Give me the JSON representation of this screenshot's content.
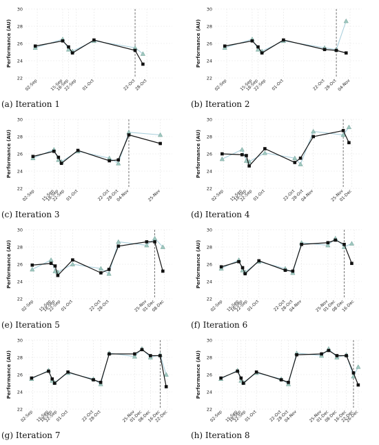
{
  "chart_data": [
    {
      "type": "line",
      "caption": "(a) Iteration 1",
      "ylabel": "Performance (AU)",
      "ylim": [
        22,
        30
      ],
      "yticks": [
        22,
        24,
        26,
        28,
        30
      ],
      "xlim": [
        "2024-08-27",
        "2024-11-10"
      ],
      "xtick_dates": [
        "2024-09-02",
        "2024-09-15",
        "2024-09-18",
        "2024-09-22",
        "2024-10-01",
        "2024-10-22",
        "2024-10-28"
      ],
      "xtick_labels": [
        "02-Sep",
        "15-Sep",
        "18-Sep",
        "22-Sep",
        "01-Oct",
        "22-Oct",
        "28-Oct"
      ],
      "cutoff": "2024-10-22",
      "series": [
        {
          "marker": "square",
          "x": [
            "2024-09-01",
            "2024-09-15",
            "2024-09-18",
            "2024-09-20",
            "2024-10-01",
            "2024-10-22",
            "2024-10-26"
          ],
          "y": [
            25.7,
            26.3,
            25.6,
            24.9,
            26.4,
            25.2,
            23.6
          ]
        },
        {
          "marker": "triangle",
          "x": [
            "2024-09-01",
            "2024-09-15",
            "2024-09-18",
            "2024-09-20",
            "2024-10-01",
            "2024-10-22",
            "2024-10-26"
          ],
          "y": [
            25.5,
            26.5,
            25.3,
            25.1,
            26.3,
            25.5,
            24.8
          ]
        }
      ]
    },
    {
      "type": "line",
      "caption": "(b) Iteration 2",
      "ylabel": "Performance (AU)",
      "ylim": [
        22,
        30
      ],
      "yticks": [
        22,
        24,
        26,
        28,
        30
      ],
      "xlim": [
        "2024-08-27",
        "2024-11-10"
      ],
      "xtick_dates": [
        "2024-09-02",
        "2024-09-15",
        "2024-09-18",
        "2024-09-22",
        "2024-10-01",
        "2024-10-22",
        "2024-10-28",
        "2024-11-04"
      ],
      "xtick_labels": [
        "02-Sep",
        "15-Sep",
        "18-Sep",
        "22-Sep",
        "01-Oct",
        "22-Oct",
        "28-Oct",
        "04-Nov"
      ],
      "cutoff": "2024-10-28",
      "series": [
        {
          "marker": "square",
          "x": [
            "2024-09-01",
            "2024-09-15",
            "2024-09-18",
            "2024-09-20",
            "2024-10-01",
            "2024-10-22",
            "2024-10-28",
            "2024-11-02"
          ],
          "y": [
            25.7,
            26.3,
            25.6,
            24.9,
            26.4,
            25.3,
            25.2,
            24.9
          ]
        },
        {
          "marker": "triangle",
          "x": [
            "2024-09-01",
            "2024-09-15",
            "2024-09-18",
            "2024-09-20",
            "2024-10-01",
            "2024-10-22",
            "2024-10-28",
            "2024-11-02"
          ],
          "y": [
            25.5,
            26.5,
            25.3,
            25.1,
            26.3,
            25.5,
            25.3,
            28.6
          ]
        }
      ]
    },
    {
      "type": "line",
      "caption": "(c) Iteration 3",
      "ylabel": "Performance (AU)",
      "ylim": [
        22,
        30
      ],
      "yticks": [
        22,
        24,
        26,
        28,
        30
      ],
      "xlim": [
        "2024-08-27",
        "2024-12-03"
      ],
      "xtick_dates": [
        "2024-09-02",
        "2024-09-15",
        "2024-09-18",
        "2024-09-22",
        "2024-10-01",
        "2024-10-22",
        "2024-10-28",
        "2024-11-04",
        "2024-11-25"
      ],
      "xtick_labels": [
        "02-Sep",
        "15-Sep",
        "18-Sep",
        "22-Sep",
        "01-Oct",
        "22-Oct",
        "28-Oct",
        "04-Nov",
        "25-Nov"
      ],
      "cutoff": "2024-11-04",
      "series": [
        {
          "marker": "square",
          "x": [
            "2024-09-01",
            "2024-09-15",
            "2024-09-18",
            "2024-09-20",
            "2024-10-01",
            "2024-10-22",
            "2024-10-28",
            "2024-11-04",
            "2024-11-25"
          ],
          "y": [
            25.7,
            26.3,
            25.6,
            24.9,
            26.4,
            25.2,
            25.3,
            28.2,
            27.2
          ]
        },
        {
          "marker": "triangle",
          "x": [
            "2024-09-01",
            "2024-09-15",
            "2024-09-18",
            "2024-09-20",
            "2024-10-01",
            "2024-10-22",
            "2024-10-28",
            "2024-11-04",
            "2024-11-25"
          ],
          "y": [
            25.5,
            26.5,
            25.3,
            25.1,
            26.3,
            25.5,
            24.9,
            28.5,
            28.2
          ]
        }
      ]
    },
    {
      "type": "line",
      "caption": "(d) Iteration 4",
      "ylabel": "Performance (AU)",
      "ylim": [
        22,
        30
      ],
      "yticks": [
        22,
        24,
        26,
        28,
        30
      ],
      "xlim": [
        "2024-08-27",
        "2024-12-08"
      ],
      "xtick_dates": [
        "2024-09-02",
        "2024-09-15",
        "2024-09-18",
        "2024-09-22",
        "2024-10-01",
        "2024-10-22",
        "2024-10-28",
        "2024-11-04",
        "2024-11-25",
        "2024-12-01"
      ],
      "xtick_labels": [
        "02-Sep",
        "15-Sep",
        "18-Sep",
        "22-Sep",
        "01-Oct",
        "22-Oct",
        "28-Oct",
        "04-Nov",
        "25-Nov",
        "01-Dec"
      ],
      "cutoff": "2024-11-25",
      "series": [
        {
          "marker": "square",
          "x": [
            "2024-09-01",
            "2024-09-15",
            "2024-09-18",
            "2024-09-20",
            "2024-10-01",
            "2024-10-22",
            "2024-10-26",
            "2024-11-04",
            "2024-11-25",
            "2024-11-29"
          ],
          "y": [
            26.0,
            25.9,
            25.8,
            24.6,
            26.6,
            25.0,
            25.5,
            28.0,
            28.7,
            27.3
          ]
        },
        {
          "marker": "triangle",
          "x": [
            "2024-09-01",
            "2024-09-15",
            "2024-09-18",
            "2024-09-20",
            "2024-10-01",
            "2024-10-22",
            "2024-10-26",
            "2024-11-04",
            "2024-11-25",
            "2024-11-29"
          ],
          "y": [
            25.4,
            26.5,
            25.2,
            25.1,
            26.1,
            25.5,
            24.8,
            28.6,
            28.2,
            29.1
          ]
        }
      ]
    },
    {
      "type": "line",
      "caption": "(e) Iteration 5",
      "ylabel": "Performance (AU)",
      "ylim": [
        22,
        30
      ],
      "yticks": [
        22,
        24,
        26,
        28,
        30
      ],
      "xlim": [
        "2024-08-27",
        "2024-12-14"
      ],
      "xtick_dates": [
        "2024-09-02",
        "2024-09-15",
        "2024-09-18",
        "2024-09-22",
        "2024-10-01",
        "2024-10-22",
        "2024-10-28",
        "2024-11-25",
        "2024-12-01",
        "2024-12-08"
      ],
      "xtick_labels": [
        "02-Sep",
        "15-Sep",
        "18-Sep",
        "22-Sep",
        "01-Oct",
        "22-Oct",
        "28-Oct",
        "25-Nov",
        "01-Dec",
        "08-Dec"
      ],
      "cutoff": "2024-12-01",
      "series": [
        {
          "marker": "square",
          "x": [
            "2024-09-01",
            "2024-09-15",
            "2024-09-18",
            "2024-09-20",
            "2024-10-01",
            "2024-10-22",
            "2024-10-28",
            "2024-11-04",
            "2024-11-25",
            "2024-12-01",
            "2024-12-07"
          ],
          "y": [
            25.9,
            26.1,
            25.8,
            24.7,
            26.5,
            25.0,
            25.4,
            28.1,
            28.6,
            28.6,
            25.2
          ]
        },
        {
          "marker": "triangle",
          "x": [
            "2024-09-01",
            "2024-09-15",
            "2024-09-18",
            "2024-09-20",
            "2024-10-01",
            "2024-10-22",
            "2024-10-28",
            "2024-11-04",
            "2024-11-25",
            "2024-12-01",
            "2024-12-07"
          ],
          "y": [
            25.4,
            26.5,
            25.2,
            25.1,
            26.0,
            25.5,
            24.9,
            28.6,
            28.2,
            29.0,
            28.0
          ]
        }
      ]
    },
    {
      "type": "line",
      "caption": "(f) Iteration 6",
      "ylabel": "Performance (AU)",
      "ylim": [
        22,
        30
      ],
      "yticks": [
        22,
        24,
        26,
        28,
        30
      ],
      "xlim": [
        "2024-08-27",
        "2024-12-22"
      ],
      "xtick_dates": [
        "2024-09-02",
        "2024-09-15",
        "2024-09-18",
        "2024-09-22",
        "2024-10-01",
        "2024-10-22",
        "2024-10-28",
        "2024-11-04",
        "2024-11-25",
        "2024-12-01",
        "2024-12-08",
        "2024-12-16"
      ],
      "xtick_labels": [
        "02-Sep",
        "15-Sep",
        "18-Sep",
        "22-Sep",
        "01-Oct",
        "22-Oct",
        "28-Oct",
        "04-Nov",
        "25-Nov",
        "01-Dec",
        "08-Dec",
        "16-Dec"
      ],
      "cutoff": "2024-12-08",
      "series": [
        {
          "marker": "square",
          "x": [
            "2024-09-01",
            "2024-09-15",
            "2024-09-18",
            "2024-09-20",
            "2024-10-01",
            "2024-10-22",
            "2024-10-28",
            "2024-11-04",
            "2024-11-25",
            "2024-12-01",
            "2024-12-08",
            "2024-12-14"
          ],
          "y": [
            25.7,
            26.3,
            25.6,
            24.9,
            26.4,
            25.3,
            25.2,
            28.3,
            28.5,
            28.8,
            28.3,
            26.1
          ]
        },
        {
          "marker": "triangle",
          "x": [
            "2024-09-01",
            "2024-09-15",
            "2024-09-18",
            "2024-09-20",
            "2024-10-01",
            "2024-10-22",
            "2024-10-28",
            "2024-11-04",
            "2024-11-25",
            "2024-12-01",
            "2024-12-08",
            "2024-12-14"
          ],
          "y": [
            25.5,
            26.5,
            25.3,
            25.1,
            26.3,
            25.5,
            25.0,
            28.5,
            28.2,
            29.0,
            28.0,
            28.4
          ]
        }
      ]
    },
    {
      "type": "line",
      "caption": "(g) Iteration 7",
      "ylabel": "Performance (AU)",
      "ylim": [
        22,
        30
      ],
      "yticks": [
        22,
        24,
        26,
        28,
        30
      ],
      "xlim": [
        "2024-08-27",
        "2024-12-26"
      ],
      "xtick_dates": [
        "2024-09-02",
        "2024-09-15",
        "2024-09-18",
        "2024-09-22",
        "2024-10-01",
        "2024-10-22",
        "2024-10-28",
        "2024-11-25",
        "2024-12-01",
        "2024-12-08",
        "2024-12-16",
        "2024-12-22"
      ],
      "xtick_labels": [
        "02-Sep",
        "15-Sep",
        "18-Sep",
        "22-Sep",
        "01-Oct",
        "22-Oct",
        "28-Oct",
        "25-Nov",
        "01-Dec",
        "08-Dec",
        "16-Dec",
        "22-Dec"
      ],
      "cutoff": "2024-12-16",
      "series": [
        {
          "marker": "square",
          "x": [
            "2024-09-01",
            "2024-09-15",
            "2024-09-18",
            "2024-09-20",
            "2024-10-01",
            "2024-10-22",
            "2024-10-28",
            "2024-11-04",
            "2024-11-25",
            "2024-12-01",
            "2024-12-08",
            "2024-12-16",
            "2024-12-21"
          ],
          "y": [
            25.6,
            26.4,
            25.5,
            25.0,
            26.3,
            25.4,
            25.1,
            28.4,
            28.4,
            28.9,
            28.2,
            28.2,
            24.6
          ]
        },
        {
          "marker": "triangle",
          "x": [
            "2024-09-01",
            "2024-09-15",
            "2024-09-18",
            "2024-09-20",
            "2024-10-01",
            "2024-10-22",
            "2024-10-28",
            "2024-11-04",
            "2024-11-25",
            "2024-12-01",
            "2024-12-08",
            "2024-12-16",
            "2024-12-21"
          ],
          "y": [
            25.5,
            26.5,
            25.3,
            25.1,
            26.2,
            25.5,
            24.9,
            28.5,
            28.1,
            29.0,
            28.0,
            28.3,
            26.0
          ]
        }
      ]
    },
    {
      "type": "line",
      "caption": "(h) Iteration 8",
      "ylabel": "Performance (AU)",
      "ylim": [
        22,
        30
      ],
      "yticks": [
        22,
        24,
        26,
        28,
        30
      ],
      "xlim": [
        "2024-08-27",
        "2024-12-29"
      ],
      "xtick_dates": [
        "2024-09-02",
        "2024-09-15",
        "2024-09-18",
        "2024-09-22",
        "2024-10-01",
        "2024-10-22",
        "2024-10-28",
        "2024-11-04",
        "2024-11-25",
        "2024-12-01",
        "2024-12-08",
        "2024-12-16",
        "2024-12-22",
        "2024-12-26"
      ],
      "xtick_labels": [
        "02-Sep",
        "15-Sep",
        "18-Sep",
        "22-Sep",
        "01-Oct",
        "22-Oct",
        "28-Oct",
        "04-Nov",
        "25-Nov",
        "01-Dec",
        "08-Dec",
        "16-Dec",
        "22-Dec",
        "26-Dec"
      ],
      "cutoff": "2024-12-22",
      "series": [
        {
          "marker": "square",
          "x": [
            "2024-09-01",
            "2024-09-15",
            "2024-09-18",
            "2024-09-20",
            "2024-10-01",
            "2024-10-22",
            "2024-10-28",
            "2024-11-04",
            "2024-11-25",
            "2024-12-01",
            "2024-12-08",
            "2024-12-16",
            "2024-12-22",
            "2024-12-26"
          ],
          "y": [
            25.6,
            26.4,
            25.6,
            25.0,
            26.3,
            25.4,
            25.1,
            28.3,
            28.4,
            28.8,
            28.2,
            28.2,
            26.2,
            24.8
          ]
        },
        {
          "marker": "triangle",
          "x": [
            "2024-09-01",
            "2024-09-15",
            "2024-09-18",
            "2024-09-20",
            "2024-10-01",
            "2024-10-22",
            "2024-10-28",
            "2024-11-04",
            "2024-11-25",
            "2024-12-01",
            "2024-12-08",
            "2024-12-16",
            "2024-12-22",
            "2024-12-26"
          ],
          "y": [
            25.5,
            26.5,
            25.3,
            25.1,
            26.2,
            25.5,
            24.9,
            28.5,
            28.2,
            29.0,
            28.0,
            28.3,
            25.8,
            26.9
          ]
        }
      ]
    }
  ],
  "colors": {
    "actual_line": "#111111",
    "predicted_line": "#a9cfdc",
    "predicted_marker_fill": "#9fc7bf",
    "predicted_marker_stroke": "#6f9f96",
    "cutoff_line": "#555555",
    "grid": "#e4e4e4"
  }
}
